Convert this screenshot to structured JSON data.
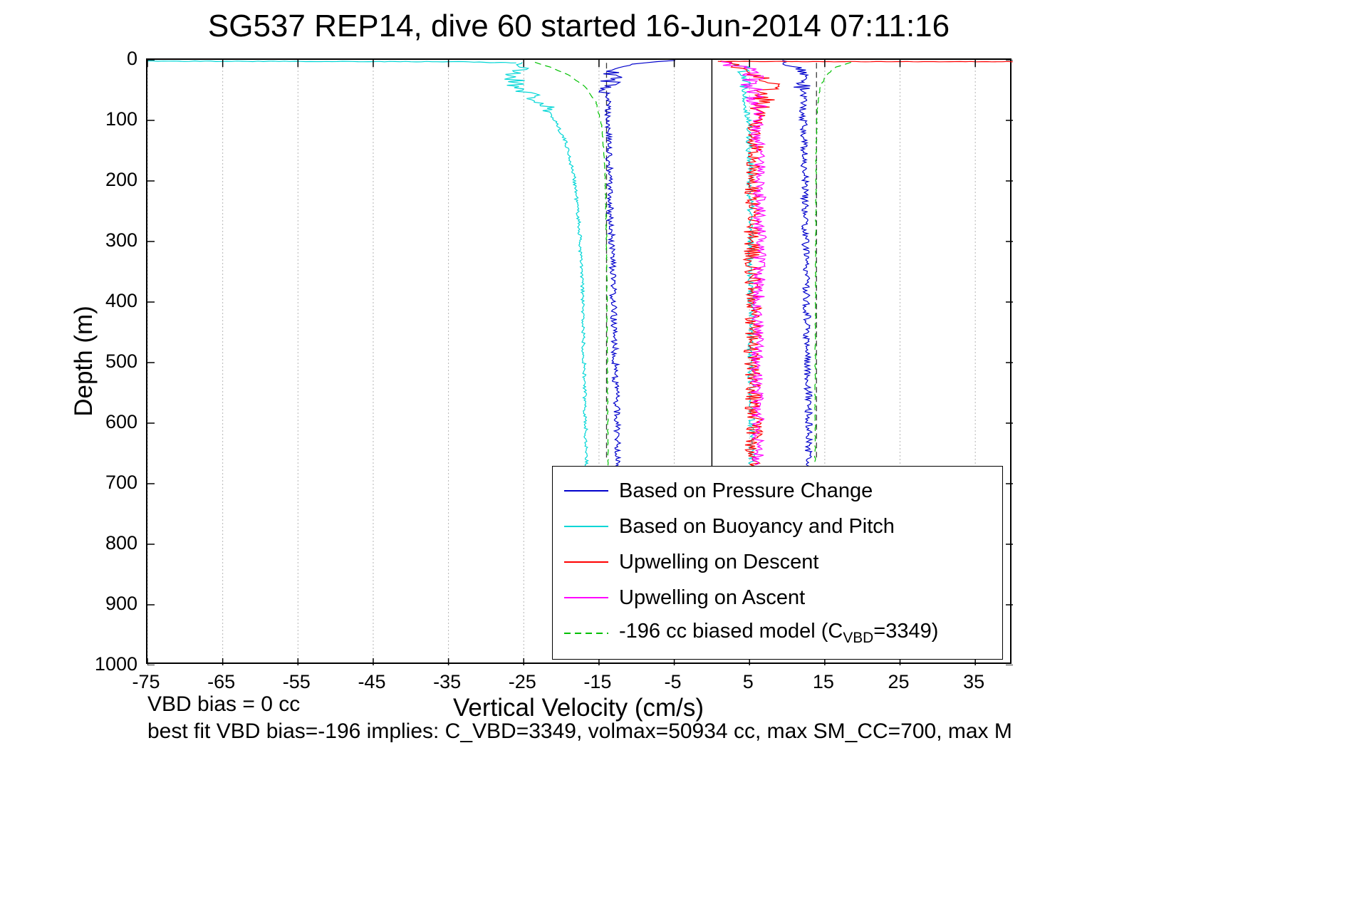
{
  "annotations_text": {
    "vbd_bias": "VBD bias = 0 cc",
    "best_fit": "best fit VBD bias=-196 implies: C_VBD=3349, volmax=50934 cc, max SM_CC=700, max M"
  },
  "chart_data": {
    "type": "line",
    "title": "SG537 REP14, dive 60 started 16-Jun-2014 07:11:16",
    "xlabel": "Vertical Velocity (cm/s)",
    "ylabel": "Depth (m)",
    "xlim": [
      -75,
      40
    ],
    "ylim": [
      0,
      1000
    ],
    "y_inverted": true,
    "xticks": [
      -75,
      -65,
      -55,
      -45,
      -35,
      -25,
      -15,
      -5,
      5,
      15,
      25,
      35
    ],
    "yticks": [
      0,
      100,
      200,
      300,
      400,
      500,
      600,
      700,
      800,
      900,
      1000
    ],
    "grid": {
      "x": true,
      "y": false,
      "style": "dotted",
      "color": "#b5b5b5"
    },
    "reference_lines": [
      {
        "name": "zero-line",
        "x": 0,
        "depth": [
          0,
          682
        ],
        "color": "#000000",
        "dash": null,
        "width": 1.5
      },
      {
        "name": "descent-target-dashed",
        "x": -14.0,
        "depth": [
          5,
          662
        ],
        "color": "#3a3a3a",
        "dash": [
          8,
          5
        ],
        "width": 1.3
      },
      {
        "name": "ascent-target-dashed",
        "x": 13.9,
        "depth": [
          5,
          662
        ],
        "color": "#3a3a3a",
        "dash": [
          8,
          5
        ],
        "width": 1.3
      }
    ],
    "series": [
      {
        "name": "Based on Pressure Change",
        "color": "#0000cc",
        "dash": null,
        "legend_label_parts": [
          {
            "text": "Based on Pressure Change"
          }
        ],
        "branches": [
          {
            "orient": "v",
            "seed": 29,
            "step": 2,
            "noise": 0.45,
            "noise_shallow": {
              "amp": 1.5,
              "until": 55
            },
            "anchors": [
              [
                1,
                -4
              ],
              [
                6,
                -9.5
              ],
              [
                14,
                -12.3
              ],
              [
                30,
                -13.4
              ],
              [
                60,
                -13.8
              ],
              [
                150,
                -13.7
              ],
              [
                250,
                -13.5
              ],
              [
                350,
                -13.2
              ],
              [
                450,
                -13.0
              ],
              [
                550,
                -12.7
              ],
              [
                680,
                -12.4
              ]
            ]
          },
          {
            "orient": "v",
            "seed": 30,
            "step": 2,
            "noise": 0.5,
            "noise_shallow": {
              "amp": 1.2,
              "until": 50
            },
            "anchors": [
              [
                1,
                8.5
              ],
              [
                8,
                10.5
              ],
              [
                20,
                11.8
              ],
              [
                50,
                12.1
              ],
              [
                120,
                12.2
              ],
              [
                250,
                12.4
              ],
              [
                400,
                12.6
              ],
              [
                550,
                12.8
              ],
              [
                680,
                12.9
              ]
            ]
          }
        ]
      },
      {
        "name": "Based on Buoyancy and Pitch",
        "color": "#00d6d6",
        "dash": null,
        "legend_label_parts": [
          {
            "text": "Based on Buoyancy and Pitch"
          }
        ],
        "branches": [
          {
            "orient": "h",
            "seed": 23,
            "step": 0.7,
            "noise": 0.5,
            "anchors": [
              [
                -75,
                2.2
              ],
              [
                -50,
                2.6
              ],
              [
                -34,
                3.2
              ],
              [
                -26,
                5
              ]
            ]
          },
          {
            "orient": "v",
            "seed": 21,
            "step": 2,
            "noise": 0.25,
            "noise_shallow": {
              "amp": 1.6,
              "until": 85
            },
            "anchors": [
              [
                4,
                -25
              ],
              [
                12,
                -25.5
              ],
              [
                25,
                -26.5
              ],
              [
                40,
                -26
              ],
              [
                55,
                -24.5
              ],
              [
                75,
                -22.5
              ],
              [
                100,
                -20.8
              ],
              [
                140,
                -19.3
              ],
              [
                200,
                -18.2
              ],
              [
                280,
                -17.6
              ],
              [
                380,
                -17.2
              ],
              [
                500,
                -17.0
              ],
              [
                600,
                -16.8
              ],
              [
                680,
                -16.6
              ]
            ]
          },
          {
            "orient": "v",
            "seed": 22,
            "step": 2,
            "noise": 0.45,
            "noise_shallow": {
              "amp": 1.0,
              "until": 50
            },
            "anchors": [
              [
                2,
                2.5
              ],
              [
                12,
                4.3
              ],
              [
                30,
                4.6
              ],
              [
                60,
                4.4
              ],
              [
                100,
                4.9
              ],
              [
                200,
                5.1
              ],
              [
                350,
                5.2
              ],
              [
                500,
                5.2
              ],
              [
                680,
                5.3
              ]
            ]
          }
        ]
      },
      {
        "name": "Upwelling on Descent",
        "color": "#ff0000",
        "dash": null,
        "legend_label_parts": [
          {
            "text": "Upwelling on Descent"
          }
        ],
        "branches": [
          {
            "orient": "h",
            "seed": 24,
            "step": 0.7,
            "noise": 0.35,
            "anchors": [
              [
                0.8,
                2.6
              ],
              [
                20,
                3
              ],
              [
                40,
                3
              ]
            ]
          },
          {
            "orient": "v",
            "seed": 25,
            "step": 2,
            "noise": 1.15,
            "noise_shallow": {
              "amp": 1.7,
              "until": 85
            },
            "anchors": [
              [
                2,
                0.8
              ],
              [
                10,
                3.5
              ],
              [
                22,
                6
              ],
              [
                38,
                7.6
              ],
              [
                55,
                7.2
              ],
              [
                80,
                6.2
              ],
              [
                120,
                5.8
              ],
              [
                200,
                5.5
              ],
              [
                300,
                5.3
              ],
              [
                400,
                5.6
              ],
              [
                500,
                5.3
              ],
              [
                600,
                5.6
              ],
              [
                680,
                5.4
              ]
            ]
          }
        ]
      },
      {
        "name": "Upwelling on Ascent",
        "color": "#ff00ff",
        "dash": null,
        "legend_label_parts": [
          {
            "text": "Upwelling on Ascent"
          }
        ],
        "branches": [
          {
            "orient": "v",
            "seed": 26,
            "step": 2,
            "noise": 0.85,
            "noise_shallow": {
              "amp": 1.6,
              "until": 85
            },
            "anchors": [
              [
                3,
                1.2
              ],
              [
                12,
                4
              ],
              [
                28,
                5.8
              ],
              [
                45,
                5
              ],
              [
                70,
                6.2
              ],
              [
                110,
                6
              ],
              [
                180,
                6.3
              ],
              [
                300,
                6.4
              ],
              [
                420,
                6.1
              ],
              [
                540,
                6
              ],
              [
                670,
                6.2
              ]
            ]
          }
        ]
      },
      {
        "name": "-196 cc biased model (C_VBD=3349)",
        "color": "#00c000",
        "dash": [
          9,
          6
        ],
        "legend_label_parts": [
          {
            "text": "-196 cc biased model (C"
          },
          {
            "text": "VBD",
            "sub": true
          },
          {
            "text": "=3349)"
          }
        ],
        "branches": [
          {
            "orient": "v",
            "seed": 27,
            "step": 2,
            "noise": 0.06,
            "anchors": [
              [
                4,
                -23.5
              ],
              [
                12,
                -21.5
              ],
              [
                25,
                -19
              ],
              [
                45,
                -16.8
              ],
              [
                70,
                -15.4
              ],
              [
                110,
                -14.6
              ],
              [
                180,
                -14.2
              ],
              [
                300,
                -14.0
              ],
              [
                460,
                -13.9
              ],
              [
                680,
                -13.8
              ]
            ]
          },
          {
            "orient": "v",
            "seed": 28,
            "step": 2,
            "noise": 0.06,
            "anchors": [
              [
                4,
                18.5
              ],
              [
                12,
                16.5
              ],
              [
                25,
                15.2
              ],
              [
                45,
                14.4
              ],
              [
                80,
                14.0
              ],
              [
                150,
                13.85
              ],
              [
                300,
                13.8
              ],
              [
                500,
                13.75
              ],
              [
                680,
                13.7
              ]
            ]
          }
        ]
      }
    ]
  }
}
